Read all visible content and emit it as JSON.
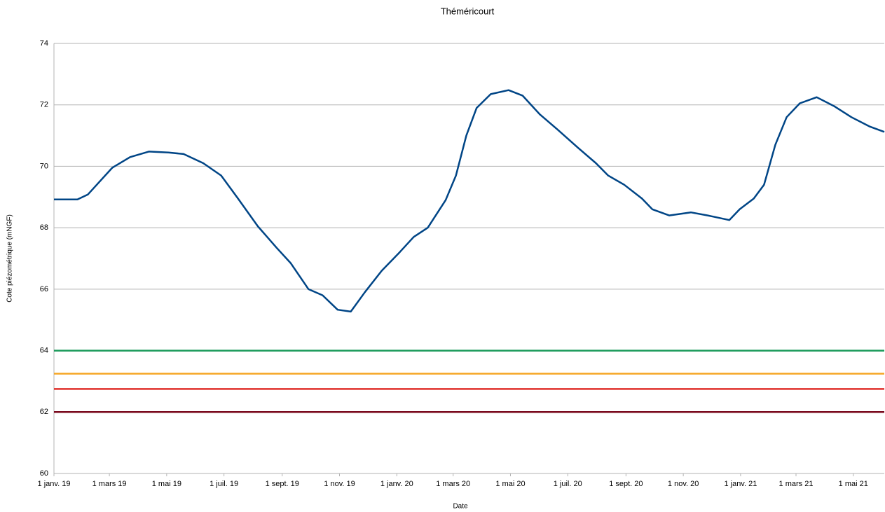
{
  "chart_data": {
    "type": "line",
    "title": "Théméricourt",
    "x_label": "Date",
    "y_label": "Cote piézométrique (mNGF)",
    "xlim": [
      "2019-01-01",
      "2021-06-03"
    ],
    "xticks": [
      {
        "value": "2019-01-01",
        "label": "1 janv. 19"
      },
      {
        "value": "2019-03-01",
        "label": "1 mars 19"
      },
      {
        "value": "2019-05-01",
        "label": "1 mai 19"
      },
      {
        "value": "2019-07-01",
        "label": "1 juil. 19"
      },
      {
        "value": "2019-09-01",
        "label": "1 sept. 19"
      },
      {
        "value": "2019-11-01",
        "label": "1 nov. 19"
      },
      {
        "value": "2020-01-01",
        "label": "1 janv. 20"
      },
      {
        "value": "2020-03-01",
        "label": "1 mars 20"
      },
      {
        "value": "2020-05-01",
        "label": "1 mai 20"
      },
      {
        "value": "2020-07-01",
        "label": "1 juil. 20"
      },
      {
        "value": "2020-09-01",
        "label": "1 sept. 20"
      },
      {
        "value": "2020-11-01",
        "label": "1 nov. 20"
      },
      {
        "value": "2021-01-01",
        "label": "1 janv. 21"
      },
      {
        "value": "2021-03-01",
        "label": "1 mars 21"
      },
      {
        "value": "2021-05-01",
        "label": "1 mai 21"
      }
    ],
    "ylim": [
      60,
      74
    ],
    "yticks": [
      60,
      62,
      64,
      66,
      68,
      70,
      72,
      74
    ],
    "grid": true,
    "x": [
      "2019-01-01",
      "2019-01-26",
      "2019-02-06",
      "2019-03-04",
      "2019-03-23",
      "2019-04-12",
      "2019-05-03",
      "2019-05-19",
      "2019-06-09",
      "2019-06-28",
      "2019-07-16",
      "2019-08-06",
      "2019-08-26",
      "2019-09-10",
      "2019-09-29",
      "2019-10-14",
      "2019-10-30",
      "2019-11-13",
      "2019-11-28",
      "2019-12-16",
      "2020-01-04",
      "2020-01-19",
      "2020-02-03",
      "2020-02-22",
      "2020-03-04",
      "2020-03-15",
      "2020-03-26",
      "2020-04-10",
      "2020-04-29",
      "2020-05-14",
      "2020-06-01",
      "2020-06-20",
      "2020-07-12",
      "2020-07-31",
      "2020-08-13",
      "2020-08-30",
      "2020-09-18",
      "2020-09-29",
      "2020-10-17",
      "2020-11-09",
      "2020-11-27",
      "2020-12-20",
      "2020-12-31",
      "2021-01-15",
      "2021-01-26",
      "2021-02-07",
      "2021-02-19",
      "2021-03-05",
      "2021-03-23",
      "2021-04-11",
      "2021-04-29",
      "2021-05-18",
      "2021-06-03"
    ],
    "series": [
      {
        "color": "#004586",
        "values": [
          68.92,
          68.92,
          69.08,
          69.95,
          70.3,
          70.48,
          70.45,
          70.4,
          70.1,
          69.7,
          68.95,
          68.05,
          67.35,
          66.85,
          66.0,
          65.8,
          65.33,
          65.27,
          65.9,
          66.6,
          67.2,
          67.7,
          68.0,
          68.9,
          69.7,
          71.0,
          71.9,
          72.35,
          72.48,
          72.3,
          71.7,
          71.2,
          70.6,
          70.1,
          69.7,
          69.4,
          68.95,
          68.6,
          68.4,
          68.5,
          68.4,
          68.25,
          68.6,
          68.95,
          69.4,
          70.7,
          71.6,
          72.05,
          72.25,
          71.95,
          71.6,
          71.3,
          71.12
        ]
      }
    ],
    "reference_lines": [
      {
        "value": 64,
        "color": "#1a9a5a"
      },
      {
        "value": 63.25,
        "color": "#f5a623"
      },
      {
        "value": 62.75,
        "color": "#e0302b"
      },
      {
        "value": 62,
        "color": "#7a0a1e"
      }
    ]
  }
}
